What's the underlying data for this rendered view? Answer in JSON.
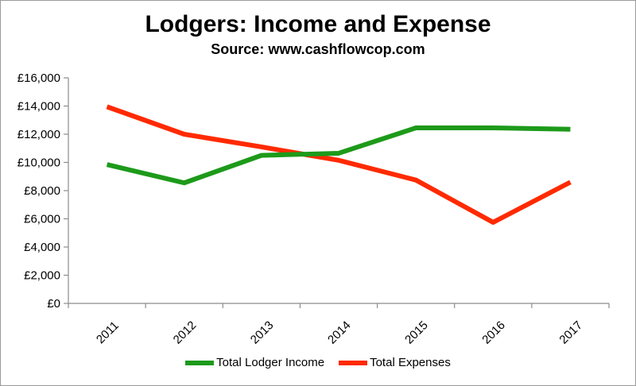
{
  "chart_data": {
    "type": "line",
    "title": "Lodgers: Income and Expense",
    "subtitle": "Source: www.cashflowcop.com",
    "categories": [
      "2011",
      "2012",
      "2013",
      "2014",
      "2015",
      "2016",
      "2017"
    ],
    "series": [
      {
        "name": "Total Lodger Income",
        "color": "#1d9a1a",
        "values": [
          9850,
          8550,
          10500,
          10650,
          12450,
          12450,
          12350
        ]
      },
      {
        "name": "Total Expenses",
        "color": "#ff2a00",
        "values": [
          13950,
          12000,
          11100,
          10150,
          8750,
          5750,
          8600
        ]
      }
    ],
    "yticks": [
      "£0",
      "£2,000",
      "£4,000",
      "£6,000",
      "£8,000",
      "£10,000",
      "£12,000",
      "£14,000",
      "£16,000"
    ],
    "ylim": [
      0,
      16000
    ],
    "ystep": 2000,
    "xlabel": "",
    "ylabel": "",
    "grid": false,
    "legend_position": "bottom"
  }
}
